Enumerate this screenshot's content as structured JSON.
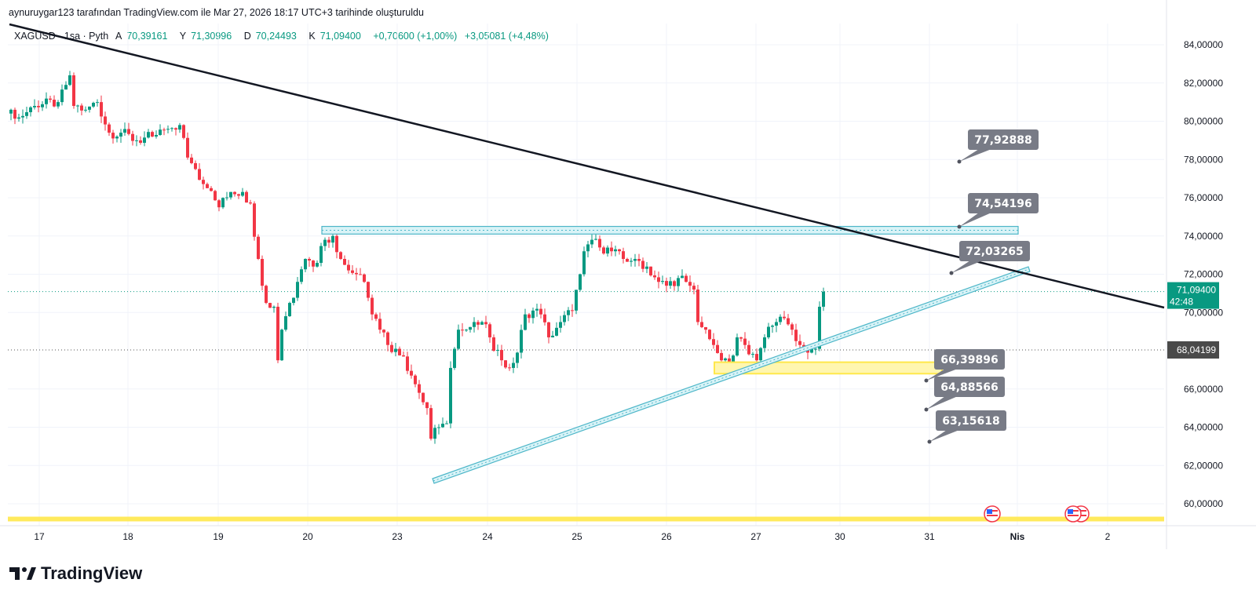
{
  "credit": "aynuruygar123 tarafından TradingView.com ile Mar 27, 2026 18:17 UTC+3 tarihinde oluşturuldu",
  "legend": {
    "symbol": "XAGUSD · 1sa · Pyth",
    "open_label": "A",
    "open": "70,39161",
    "high_label": "Y",
    "high": "71,30996",
    "low_label": "D",
    "low": "70,24493",
    "close_label": "K",
    "close": "71,09400",
    "change": "+0,70600 (+1,00%)",
    "change2": "+3,05081 (+4,48%)"
  },
  "brand": "TradingView",
  "colors": {
    "up": "#089981",
    "down": "#F23645",
    "trend": "#131722",
    "channel": "#4DB6C8",
    "zone": "#FFE84A",
    "callout": "#787B86"
  },
  "chart_data": {
    "type": "candlestick",
    "symbol": "XAGUSD",
    "interval": "1h",
    "ylim": [
      59,
      85
    ],
    "y_ticks": [
      "84,00000",
      "82,00000",
      "80,00000",
      "78,00000",
      "76,00000",
      "74,00000",
      "72,00000",
      "70,00000",
      "66,00000",
      "64,00000",
      "62,00000",
      "60,00000"
    ],
    "y_tick_values": [
      84,
      82,
      80,
      78,
      76,
      74,
      72,
      70,
      66,
      64,
      62,
      60
    ],
    "x_ticks": [
      {
        "label": "17",
        "bold": false
      },
      {
        "label": "18",
        "bold": false
      },
      {
        "label": "19",
        "bold": false
      },
      {
        "label": "20",
        "bold": false
      },
      {
        "label": "23",
        "bold": false
      },
      {
        "label": "24",
        "bold": false
      },
      {
        "label": "25",
        "bold": false
      },
      {
        "label": "26",
        "bold": false
      },
      {
        "label": "27",
        "bold": false
      },
      {
        "label": "30",
        "bold": false
      },
      {
        "label": "31",
        "bold": false
      },
      {
        "label": "Nis",
        "bold": true
      },
      {
        "label": "2",
        "bold": false
      }
    ],
    "close_path_bar_price": [
      [
        0,
        80.6
      ],
      [
        2,
        80.2
      ],
      [
        6,
        80.8
      ],
      [
        12,
        81.0
      ],
      [
        15,
        82.4
      ],
      [
        16,
        80.8
      ],
      [
        19,
        80.6
      ],
      [
        22,
        81.0
      ],
      [
        25,
        79.4
      ],
      [
        28,
        79.4
      ],
      [
        32,
        79.0
      ],
      [
        36,
        79.2
      ],
      [
        40,
        79.6
      ],
      [
        43,
        79.8
      ],
      [
        45,
        78.1
      ],
      [
        47,
        77.5
      ],
      [
        50,
        76.5
      ],
      [
        53,
        75.5
      ],
      [
        56,
        76.3
      ],
      [
        59,
        76.3
      ],
      [
        61,
        75.7
      ],
      [
        63,
        72.8
      ],
      [
        65,
        70.5
      ],
      [
        67,
        70.3
      ],
      [
        68,
        67.5
      ],
      [
        69,
        69.1
      ],
      [
        71,
        70.5
      ],
      [
        73,
        71.6
      ],
      [
        75,
        72.8
      ],
      [
        77,
        72.4
      ],
      [
        80,
        73.8
      ],
      [
        82,
        74.0
      ],
      [
        84,
        72.8
      ],
      [
        86,
        72.2
      ],
      [
        88,
        72.0
      ],
      [
        90,
        71.6
      ],
      [
        92,
        69.9
      ],
      [
        94,
        69.1
      ],
      [
        96,
        68.3
      ],
      [
        98,
        68.1
      ],
      [
        100,
        67.7
      ],
      [
        102,
        66.7
      ],
      [
        104,
        65.8
      ],
      [
        106,
        65.0
      ],
      [
        107,
        63.4
      ],
      [
        109,
        64.0
      ],
      [
        111,
        64.2
      ],
      [
        112,
        67.1
      ],
      [
        114,
        69.1
      ],
      [
        116,
        69.1
      ],
      [
        118,
        69.5
      ],
      [
        120,
        69.5
      ],
      [
        122,
        68.7
      ],
      [
        125,
        67.5
      ],
      [
        127,
        67.1
      ],
      [
        129,
        67.9
      ],
      [
        131,
        69.9
      ],
      [
        133,
        70.1
      ],
      [
        135,
        69.9
      ],
      [
        137,
        68.7
      ],
      [
        140,
        69.5
      ],
      [
        143,
        70.1
      ],
      [
        145,
        72.0
      ],
      [
        146,
        73.2
      ],
      [
        148,
        73.8
      ],
      [
        150,
        73.4
      ],
      [
        153,
        73.2
      ],
      [
        156,
        72.8
      ],
      [
        159,
        72.8
      ],
      [
        162,
        72.4
      ],
      [
        165,
        71.6
      ],
      [
        167,
        71.4
      ],
      [
        170,
        71.8
      ],
      [
        172,
        71.6
      ],
      [
        174,
        71.2
      ],
      [
        175,
        69.5
      ],
      [
        177,
        69.1
      ],
      [
        179,
        68.3
      ],
      [
        181,
        67.5
      ],
      [
        183,
        67.3
      ],
      [
        185,
        68.7
      ],
      [
        187,
        68.3
      ],
      [
        190,
        67.5
      ],
      [
        192,
        68.7
      ],
      [
        195,
        69.5
      ],
      [
        197,
        69.7
      ],
      [
        199,
        69.1
      ],
      [
        201,
        68.3
      ],
      [
        203,
        67.9
      ],
      [
        205,
        68.1
      ],
      [
        206,
        70.3
      ],
      [
        207,
        71.09
      ]
    ],
    "last_price": {
      "value": "71,09400",
      "countdown": "42:48"
    },
    "ref_price": {
      "value": "68,04199"
    },
    "callouts": [
      {
        "text": "77,92888",
        "price": 77.93
      },
      {
        "text": "74,54196",
        "price": 74.54
      },
      {
        "text": "72,03265",
        "price": 72.03
      },
      {
        "text": "66,39896",
        "price": 66.4
      },
      {
        "text": "64,88566",
        "price": 64.89
      },
      {
        "text": "63,15618",
        "price": 63.16
      }
    ],
    "resistance_zone": [
      74.1,
      74.5
    ],
    "support_zone": [
      66.8,
      67.4
    ],
    "bottom_line": 59.2
  }
}
